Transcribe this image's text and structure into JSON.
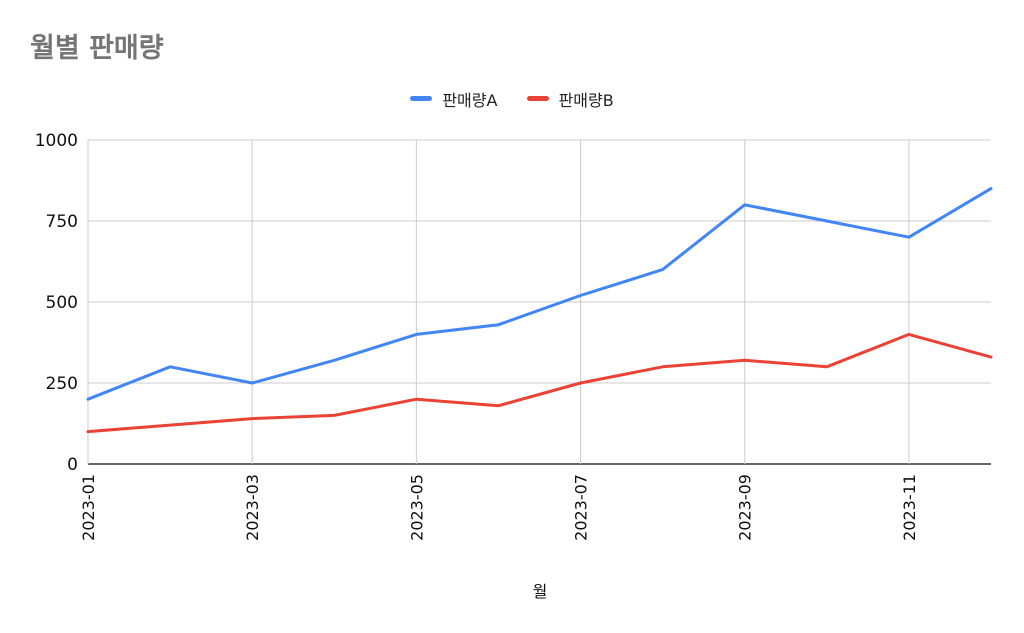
{
  "chart_data": {
    "type": "line",
    "title": "월별 판매량",
    "xlabel": "월",
    "ylabel": "",
    "ylim": [
      0,
      1000
    ],
    "yticks": [
      "0",
      "250",
      "500",
      "750",
      "1000"
    ],
    "x": [
      "2023-01",
      "2023-02",
      "2023-03",
      "2023-04",
      "2023-05",
      "2023-06",
      "2023-07",
      "2023-08",
      "2023-09",
      "2023-10",
      "2023-11",
      "2023-12"
    ],
    "xtick_labels": [
      "2023-01",
      "2023-03",
      "2023-05",
      "2023-07",
      "2023-09",
      "2023-11"
    ],
    "legend_position": "top-center",
    "grid": true,
    "series": [
      {
        "name": "판매량A",
        "color": "#4285f4",
        "values": [
          200,
          300,
          250,
          320,
          400,
          430,
          520,
          600,
          800,
          750,
          700,
          850
        ]
      },
      {
        "name": "판매량B",
        "color": "#ea4335",
        "values": [
          100,
          120,
          140,
          150,
          200,
          180,
          250,
          300,
          320,
          300,
          400,
          330
        ]
      }
    ]
  }
}
